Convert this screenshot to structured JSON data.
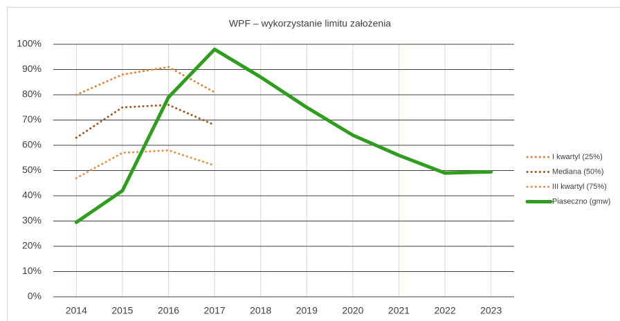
{
  "chart_data": {
    "type": "line",
    "title": "WPF – wykorzystanie limitu założenia",
    "categories": [
      "2014",
      "2015",
      "2016",
      "2017",
      "2018",
      "2019",
      "2020",
      "2021",
      "2022",
      "2023"
    ],
    "series": [
      {
        "name": "I kwartyl (25%)",
        "color": "#ed7d31",
        "dash": "dotted",
        "values": [
          80,
          88,
          91,
          81,
          null,
          null,
          null,
          null,
          null,
          null
        ]
      },
      {
        "name": "Mediana (50%)",
        "color": "#a5521b",
        "dash": "dotted",
        "values": [
          63,
          75,
          76,
          68,
          null,
          null,
          null,
          null,
          null,
          null
        ]
      },
      {
        "name": "III kwartyl (75%)",
        "color": "#f08a3c",
        "dash": "dotted",
        "values": [
          47,
          57,
          58,
          52,
          null,
          null,
          null,
          null,
          null,
          null
        ]
      },
      {
        "name": "Piaseczno (gmw)",
        "color": "#2f9e1e",
        "dash": "solid",
        "values": [
          29.5,
          42,
          79,
          98,
          87,
          75,
          64,
          56,
          49,
          49.5
        ]
      }
    ],
    "ylim": [
      0,
      100
    ],
    "yticks": [
      {
        "value": 0,
        "label": "0%"
      },
      {
        "value": 10,
        "label": "10%"
      },
      {
        "value": 20,
        "label": "20%"
      },
      {
        "value": 30,
        "label": "30%"
      },
      {
        "value": 40,
        "label": "40%"
      },
      {
        "value": 50,
        "label": "50%"
      },
      {
        "value": 60,
        "label": "60%"
      },
      {
        "value": 70,
        "label": "70%"
      },
      {
        "value": 80,
        "label": "80%"
      },
      {
        "value": 90,
        "label": "90%"
      },
      {
        "value": 100,
        "label": "100%"
      }
    ],
    "grid": true,
    "legend": "right"
  }
}
